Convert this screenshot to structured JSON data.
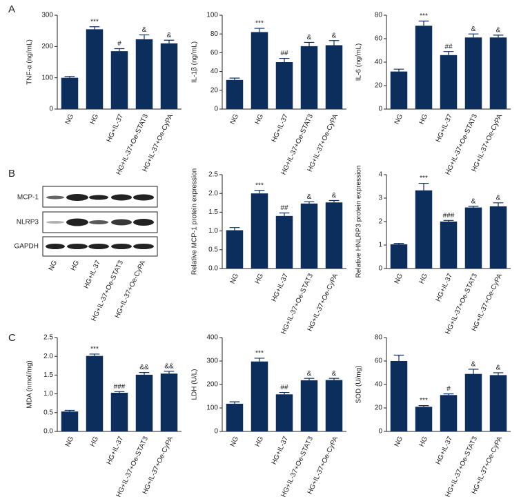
{
  "panels": [
    "A",
    "B",
    "C"
  ],
  "blot": {
    "bands": [
      "MCP-1",
      "NLRP3",
      "GAPDH"
    ],
    "categories": [
      "NG",
      "HG",
      "HG+IL-37",
      "HG+IL-37+Oe-STAT3",
      "HG+IL-37+Oe-CyPA"
    ]
  },
  "chart_data": [
    {
      "type": "bar",
      "ylabel": "TNF-α (ng/mL)",
      "color": "#0b2e5c",
      "categories": [
        "NG",
        "HG",
        "HG+IL-37",
        "HG+IL-37+Oe-STAT3",
        "HG+IL-37+Oe-CyPA"
      ],
      "values": [
        100,
        255,
        185,
        223,
        210
      ],
      "errors": [
        4,
        8,
        8,
        14,
        10
      ],
      "annotations": [
        null,
        "***",
        "#",
        "&",
        "&"
      ],
      "ylim": [
        0,
        300
      ],
      "yticks": [
        0,
        100,
        200,
        300
      ]
    },
    {
      "type": "bar",
      "ylabel": "IL-1β (ng/mL)",
      "color": "#0b2e5c",
      "categories": [
        "NG",
        "HG",
        "HG+IL-37",
        "HG+IL-37+Oe-STAT3",
        "HG+IL-37+Oe-CyPA"
      ],
      "values": [
        31,
        82,
        50,
        67,
        68
      ],
      "errors": [
        2,
        4,
        4,
        4,
        5
      ],
      "annotations": [
        null,
        "***",
        "##",
        "&",
        "&"
      ],
      "ylim": [
        0,
        100
      ],
      "yticks": [
        0,
        20,
        40,
        60,
        80,
        100
      ]
    },
    {
      "type": "bar",
      "ylabel": "IL-6 (ng/mL)",
      "color": "#0b2e5c",
      "categories": [
        "NG",
        "HG",
        "HG+IL-37",
        "HG+IL-37+Oe-STAT3",
        "HG+IL-37+Oe-CyPA"
      ],
      "values": [
        32,
        71,
        46,
        61,
        61
      ],
      "errors": [
        2,
        4,
        3,
        3,
        2
      ],
      "annotations": [
        null,
        "***",
        "##",
        "&",
        "&"
      ],
      "ylim": [
        0,
        80
      ],
      "yticks": [
        0,
        20,
        40,
        60,
        80
      ]
    },
    {
      "type": "bar",
      "ylabel": "Relative MCP-1 protein expression",
      "color": "#0b2e5c",
      "categories": [
        "NG",
        "HG",
        "HG+IL-37",
        "HG+IL-37+Oe-STAT3",
        "HG+IL-37+Oe-CyPA"
      ],
      "values": [
        1.02,
        2.0,
        1.4,
        1.73,
        1.76
      ],
      "errors": [
        0.07,
        0.08,
        0.08,
        0.05,
        0.05
      ],
      "annotations": [
        null,
        "***",
        "##",
        "&",
        "&"
      ],
      "ylim": [
        0,
        2.5
      ],
      "yticks": [
        {
          "value": 0,
          "label": "0.0"
        },
        0.5,
        {
          "value": 1,
          "label": "1.0"
        },
        1.5,
        {
          "value": 2,
          "label": "2.0"
        },
        2.5
      ]
    },
    {
      "type": "bar",
      "ylabel": "Relative HNLRP3 protein expression",
      "color": "#0b2e5c",
      "categories": [
        "NG",
        "HG",
        "HG+IL-37",
        "HG+IL-37+Oe-STAT3",
        "HG+IL-37+Oe-CyPA"
      ],
      "values": [
        1.03,
        3.33,
        2.0,
        2.6,
        2.65
      ],
      "errors": [
        0.04,
        0.3,
        0.05,
        0.05,
        0.15
      ],
      "annotations": [
        null,
        "***",
        "###",
        "&",
        "&"
      ],
      "ylim": [
        0,
        4
      ],
      "yticks": [
        0,
        1,
        2,
        3,
        4
      ]
    },
    {
      "type": "bar",
      "ylabel": "MDA (nmol/mg)",
      "color": "#0b2e5c",
      "categories": [
        "NG",
        "HG",
        "HG+IL-37",
        "HG+IL-37+Oe-STAT3",
        "HG+IL-37+Oe-CyPA"
      ],
      "values": [
        0.53,
        2.01,
        1.03,
        1.51,
        1.54
      ],
      "errors": [
        0.03,
        0.05,
        0.03,
        0.06,
        0.06
      ],
      "annotations": [
        null,
        "***",
        "###",
        "&&",
        "&&"
      ],
      "ylim": [
        0,
        2.5
      ],
      "yticks": [
        {
          "value": 0,
          "label": "0.0"
        },
        0.5,
        {
          "value": 1,
          "label": "1.0"
        },
        1.5,
        {
          "value": 2,
          "label": "2.0"
        },
        2.5
      ]
    },
    {
      "type": "bar",
      "ylabel": "LDH (U/L)",
      "color": "#0b2e5c",
      "categories": [
        "NG",
        "HG",
        "HG+IL-37",
        "HG+IL-37+Oe-STAT3",
        "HG+IL-37+Oe-CyPA"
      ],
      "values": [
        118,
        298,
        158,
        218,
        219
      ],
      "errors": [
        8,
        14,
        8,
        8,
        7
      ],
      "annotations": [
        null,
        "***",
        "##",
        "&",
        "&"
      ],
      "ylim": [
        0,
        400
      ],
      "yticks": [
        0,
        100,
        200,
        300,
        400
      ]
    },
    {
      "type": "bar",
      "ylabel": "SOD (U/mg)",
      "color": "#0b2e5c",
      "categories": [
        "NG",
        "HG",
        "HG+IL-37",
        "HG+IL-37+Oe-STAT3",
        "HG+IL-37+Oe-CyPA"
      ],
      "values": [
        60,
        21,
        31,
        49,
        48
      ],
      "errors": [
        5,
        1,
        1,
        4,
        2
      ],
      "annotations": [
        null,
        "***",
        "#",
        "&",
        "&"
      ],
      "ylim": [
        0,
        80
      ],
      "yticks": [
        0,
        20,
        40,
        60,
        80
      ]
    }
  ]
}
